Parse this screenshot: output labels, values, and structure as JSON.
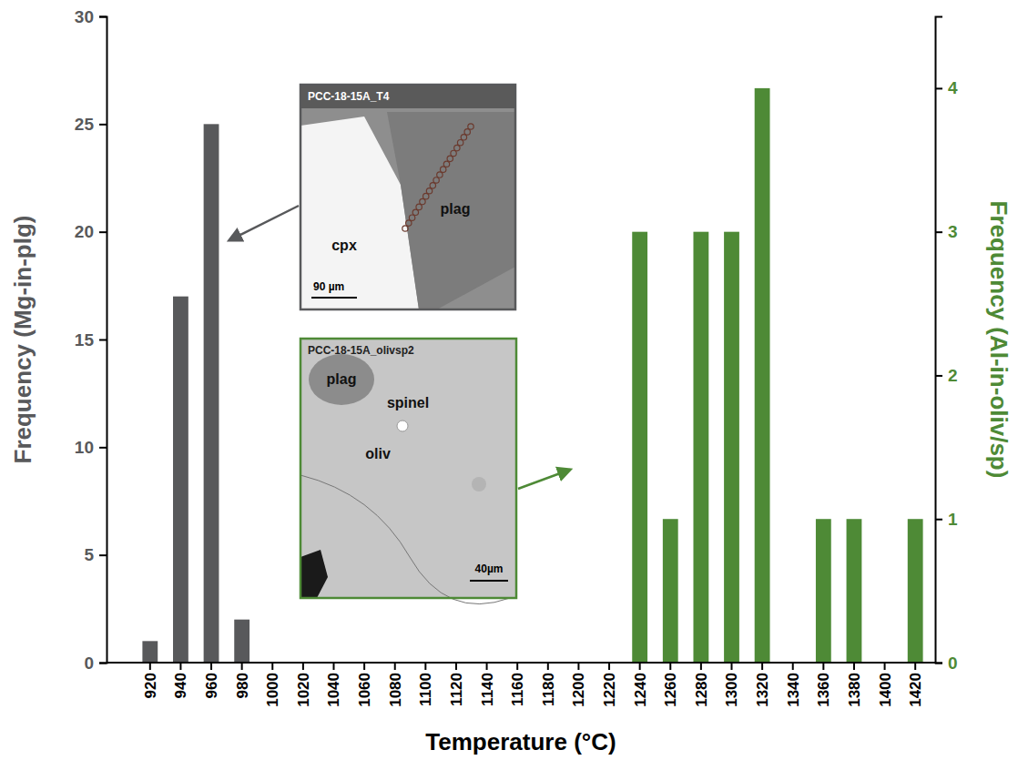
{
  "chart_data": {
    "type": "bar",
    "x_label": "Temperature (°C)",
    "y_label": "Frequency (Mg-in-plg)",
    "y2_label": "Frequency (Al-in-oliv/sp)",
    "categories": [
      920,
      940,
      960,
      980,
      1000,
      1020,
      1040,
      1060,
      1080,
      1100,
      1120,
      1140,
      1160,
      1180,
      1200,
      1220,
      1240,
      1260,
      1280,
      1300,
      1320,
      1340,
      1360,
      1380,
      1400,
      1420
    ],
    "series": [
      {
        "color": "#58595b",
        "values": [
          1,
          17,
          25,
          2,
          0,
          0,
          0,
          0,
          0,
          0,
          0,
          0,
          0,
          0,
          0,
          0,
          0,
          0,
          0,
          0,
          0,
          0,
          0,
          0,
          0,
          0
        ]
      },
      {
        "color": "#4e8a36",
        "axis": "y2",
        "values": [
          0,
          0,
          0,
          0,
          0,
          0,
          0,
          0,
          0,
          0,
          0,
          0,
          0,
          0,
          0,
          0,
          3,
          1,
          3,
          3,
          4,
          0,
          1,
          1,
          0,
          1
        ]
      }
    ],
    "ylim": [
      0,
      30
    ],
    "yticks": [
      0,
      5,
      10,
      15,
      20,
      25,
      30
    ],
    "y2lim": [
      0,
      4.5
    ],
    "y2ticks": [
      0,
      1,
      2,
      3,
      4
    ],
    "annotations": [
      {
        "title": "PCC-18-15A_T4",
        "labels": [
          "cpx",
          "plag"
        ],
        "scale_bar": "90 µm"
      },
      {
        "title": "PCC-18-15A_olivsp2",
        "labels": [
          "plag",
          "spinel",
          "oliv"
        ],
        "scale_bar": "40µm"
      }
    ]
  }
}
